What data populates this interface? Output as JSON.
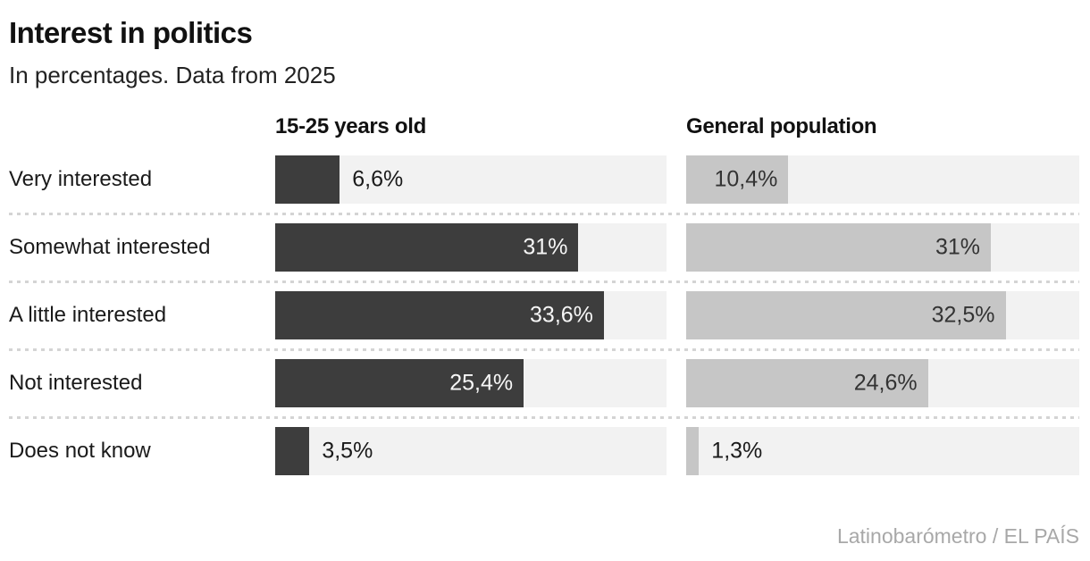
{
  "header": {
    "title": "Interest in politics",
    "subtitle": "In percentages. Data from 2025"
  },
  "columns": [
    {
      "label": "15-25 years old"
    },
    {
      "label": "General population"
    }
  ],
  "chart_data": {
    "type": "bar",
    "orientation": "horizontal",
    "title": "Interest in politics",
    "subtitle": "In percentages. Data from 2025",
    "categories": [
      "Very interested",
      "Somewhat interested",
      "A little interested",
      "Not interested",
      "Does not know"
    ],
    "series": [
      {
        "name": "15-25 years old",
        "values": [
          6.6,
          31,
          33.6,
          25.4,
          3.5
        ],
        "value_labels": [
          "6,6%",
          "31%",
          "33,6%",
          "25,4%",
          "3,5%"
        ],
        "bar_color": "#3d3d3d",
        "inside_text_color": "#f7f7f7"
      },
      {
        "name": "General population",
        "values": [
          10.4,
          31,
          32.5,
          24.6,
          1.3
        ],
        "value_labels": [
          "10,4%",
          "31%",
          "32,5%",
          "24,6%",
          "1,3%"
        ],
        "bar_color": "#c6c6c6",
        "inside_text_color": "#333333"
      }
    ],
    "axis_max": 40,
    "grid": false,
    "track_color": "#f2f2f2",
    "outside_text_color": "#1a1a1a",
    "divider_color": "#d4d4d4",
    "value_suffix": "%"
  },
  "footer": {
    "credit": "Latinobarómetro / EL PAÍS"
  }
}
